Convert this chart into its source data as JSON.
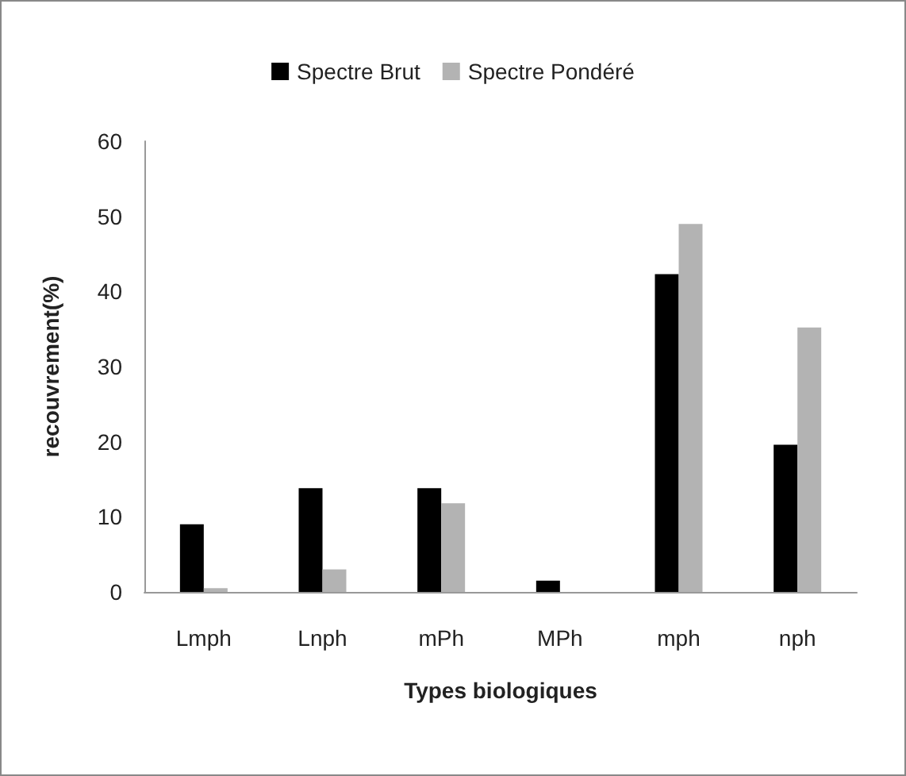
{
  "chart_data": {
    "type": "bar",
    "xlabel": "Types biologiques",
    "ylabel": "recouvrement(%)",
    "categories": [
      "Lmph",
      "Lnph",
      "mPh",
      "MPh",
      "mph",
      "nph"
    ],
    "series": [
      {
        "name": "Spectre Brut",
        "color": "#000000",
        "values": [
          9.0,
          13.8,
          13.8,
          1.5,
          42.3,
          19.6
        ]
      },
      {
        "name": "Spectre Pondéré",
        "color": "#b3b3b3",
        "values": [
          0.5,
          3.0,
          11.8,
          0,
          49.0,
          35.2
        ]
      }
    ],
    "ylim": [
      0,
      60
    ],
    "yticks": [
      0,
      10,
      20,
      30,
      40,
      50,
      60
    ],
    "grid": false,
    "legend": "top"
  }
}
